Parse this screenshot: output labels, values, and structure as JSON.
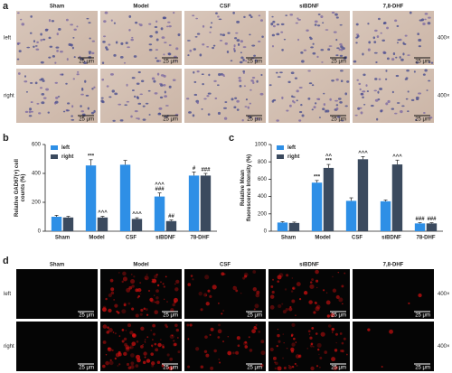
{
  "figure": {
    "panel_labels": [
      "a",
      "b",
      "c",
      "d"
    ],
    "micrographs": {
      "groups": [
        "Sham",
        "Model",
        "CSF",
        "siBDNF",
        "7,8-DHF"
      ],
      "rows": [
        "left",
        "right"
      ],
      "magnification": "400×",
      "scale_bar": "25 μm"
    },
    "fluorescence": {
      "groups": [
        "Sham",
        "Model",
        "CSF",
        "siBDNF",
        "7,8-DHF"
      ],
      "rows": [
        "left",
        "right"
      ],
      "magnification": "400×",
      "scale_bar": "25 μm"
    }
  },
  "chart_data": [
    {
      "type": "bar",
      "y_label": [
        "Relative GAD67(+) cell",
        "counts (%)"
      ],
      "categories": [
        "Sham",
        "Model",
        "CSF",
        "siBDNF",
        "78-DHF"
      ],
      "series": [
        {
          "name": "left",
          "color": "#2e8fe6",
          "values": [
            100,
            455,
            460,
            240,
            385
          ],
          "errors": [
            10,
            40,
            30,
            25,
            25
          ],
          "significance": [
            null,
            [
              "***"
            ],
            null,
            [
              "^^^",
              "###"
            ],
            [
              "#"
            ]
          ]
        },
        {
          "name": "right",
          "color": "#3b4a5e",
          "values": [
            95,
            95,
            85,
            70,
            385
          ],
          "errors": [
            8,
            8,
            8,
            8,
            15
          ],
          "significance": [
            null,
            [
              "^^^"
            ],
            [
              "^^^"
            ],
            [
              "##"
            ],
            [
              "###"
            ]
          ]
        }
      ],
      "ylim": [
        0,
        600
      ],
      "yticks": [
        0,
        200,
        400,
        600
      ],
      "legend": "upper-left"
    },
    {
      "type": "bar",
      "y_label": [
        "Relative Mean",
        "fluorescence Intensity (%)"
      ],
      "categories": [
        "Sham",
        "Model",
        "CSF",
        "siBDNF",
        "78-DHF"
      ],
      "series": [
        {
          "name": "left",
          "color": "#2e8fe6",
          "values": [
            100,
            560,
            350,
            345,
            90
          ],
          "errors": [
            10,
            25,
            35,
            15,
            8
          ],
          "significance": [
            null,
            [
              "***"
            ],
            null,
            null,
            [
              "###"
            ]
          ]
        },
        {
          "name": "right",
          "color": "#3b4a5e",
          "values": [
            95,
            730,
            830,
            770,
            90
          ],
          "errors": [
            10,
            40,
            30,
            50,
            8
          ],
          "significance": [
            null,
            [
              "^^",
              "***"
            ],
            [
              "^^^"
            ],
            [
              "^^^"
            ],
            [
              "###"
            ]
          ]
        }
      ],
      "ylim": [
        0,
        1000
      ],
      "yticks": [
        0,
        200,
        400,
        600,
        800,
        1000
      ],
      "legend": "upper-left"
    }
  ]
}
